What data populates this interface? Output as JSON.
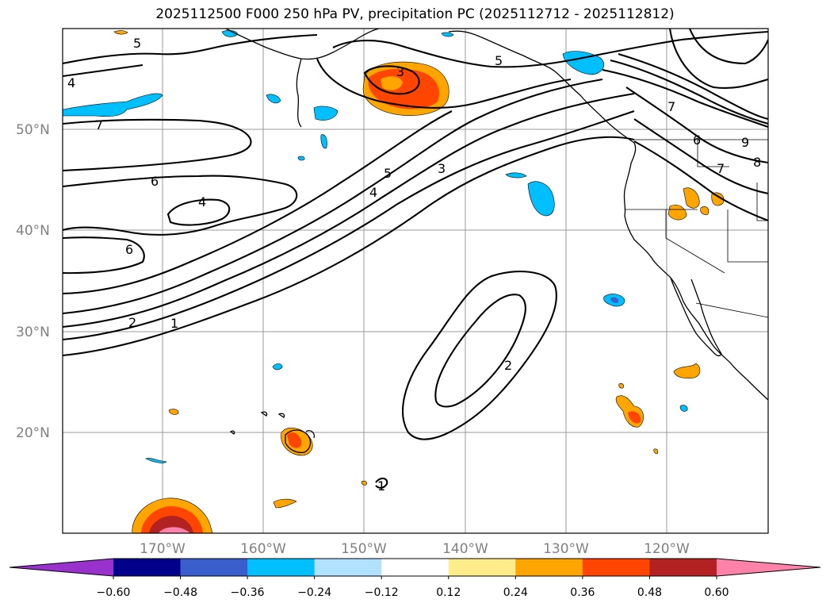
{
  "title": "2025112500 F000 250 hPa PV, precipitation PC (2025112712 - 2025112812)",
  "map": {
    "lat_labels": [
      "50°N",
      "40°N",
      "30°N",
      "20°N"
    ],
    "lon_labels": [
      "170°W",
      "160°W",
      "150°W",
      "140°W",
      "130°W",
      "120°W"
    ],
    "contour_labels": [
      "5",
      "4",
      "7",
      "6",
      "4",
      "6",
      "2",
      "1",
      "3",
      "5",
      "4",
      "3",
      "5",
      "7",
      "6",
      "9",
      "8",
      "7",
      "2",
      "1"
    ]
  },
  "colorbar": {
    "levels": [
      "−0.60",
      "−0.48",
      "−0.36",
      "−0.24",
      "−0.12",
      "0.12",
      "0.24",
      "0.36",
      "0.48",
      "0.60"
    ],
    "colors": [
      "#9932cc",
      "#00008b",
      "#3a5fcd",
      "#00bfff",
      "#b0e2ff",
      "#ffffff",
      "#ffec8b",
      "#ffa500",
      "#ff4500",
      "#b22222",
      "#ff82ab"
    ]
  }
}
